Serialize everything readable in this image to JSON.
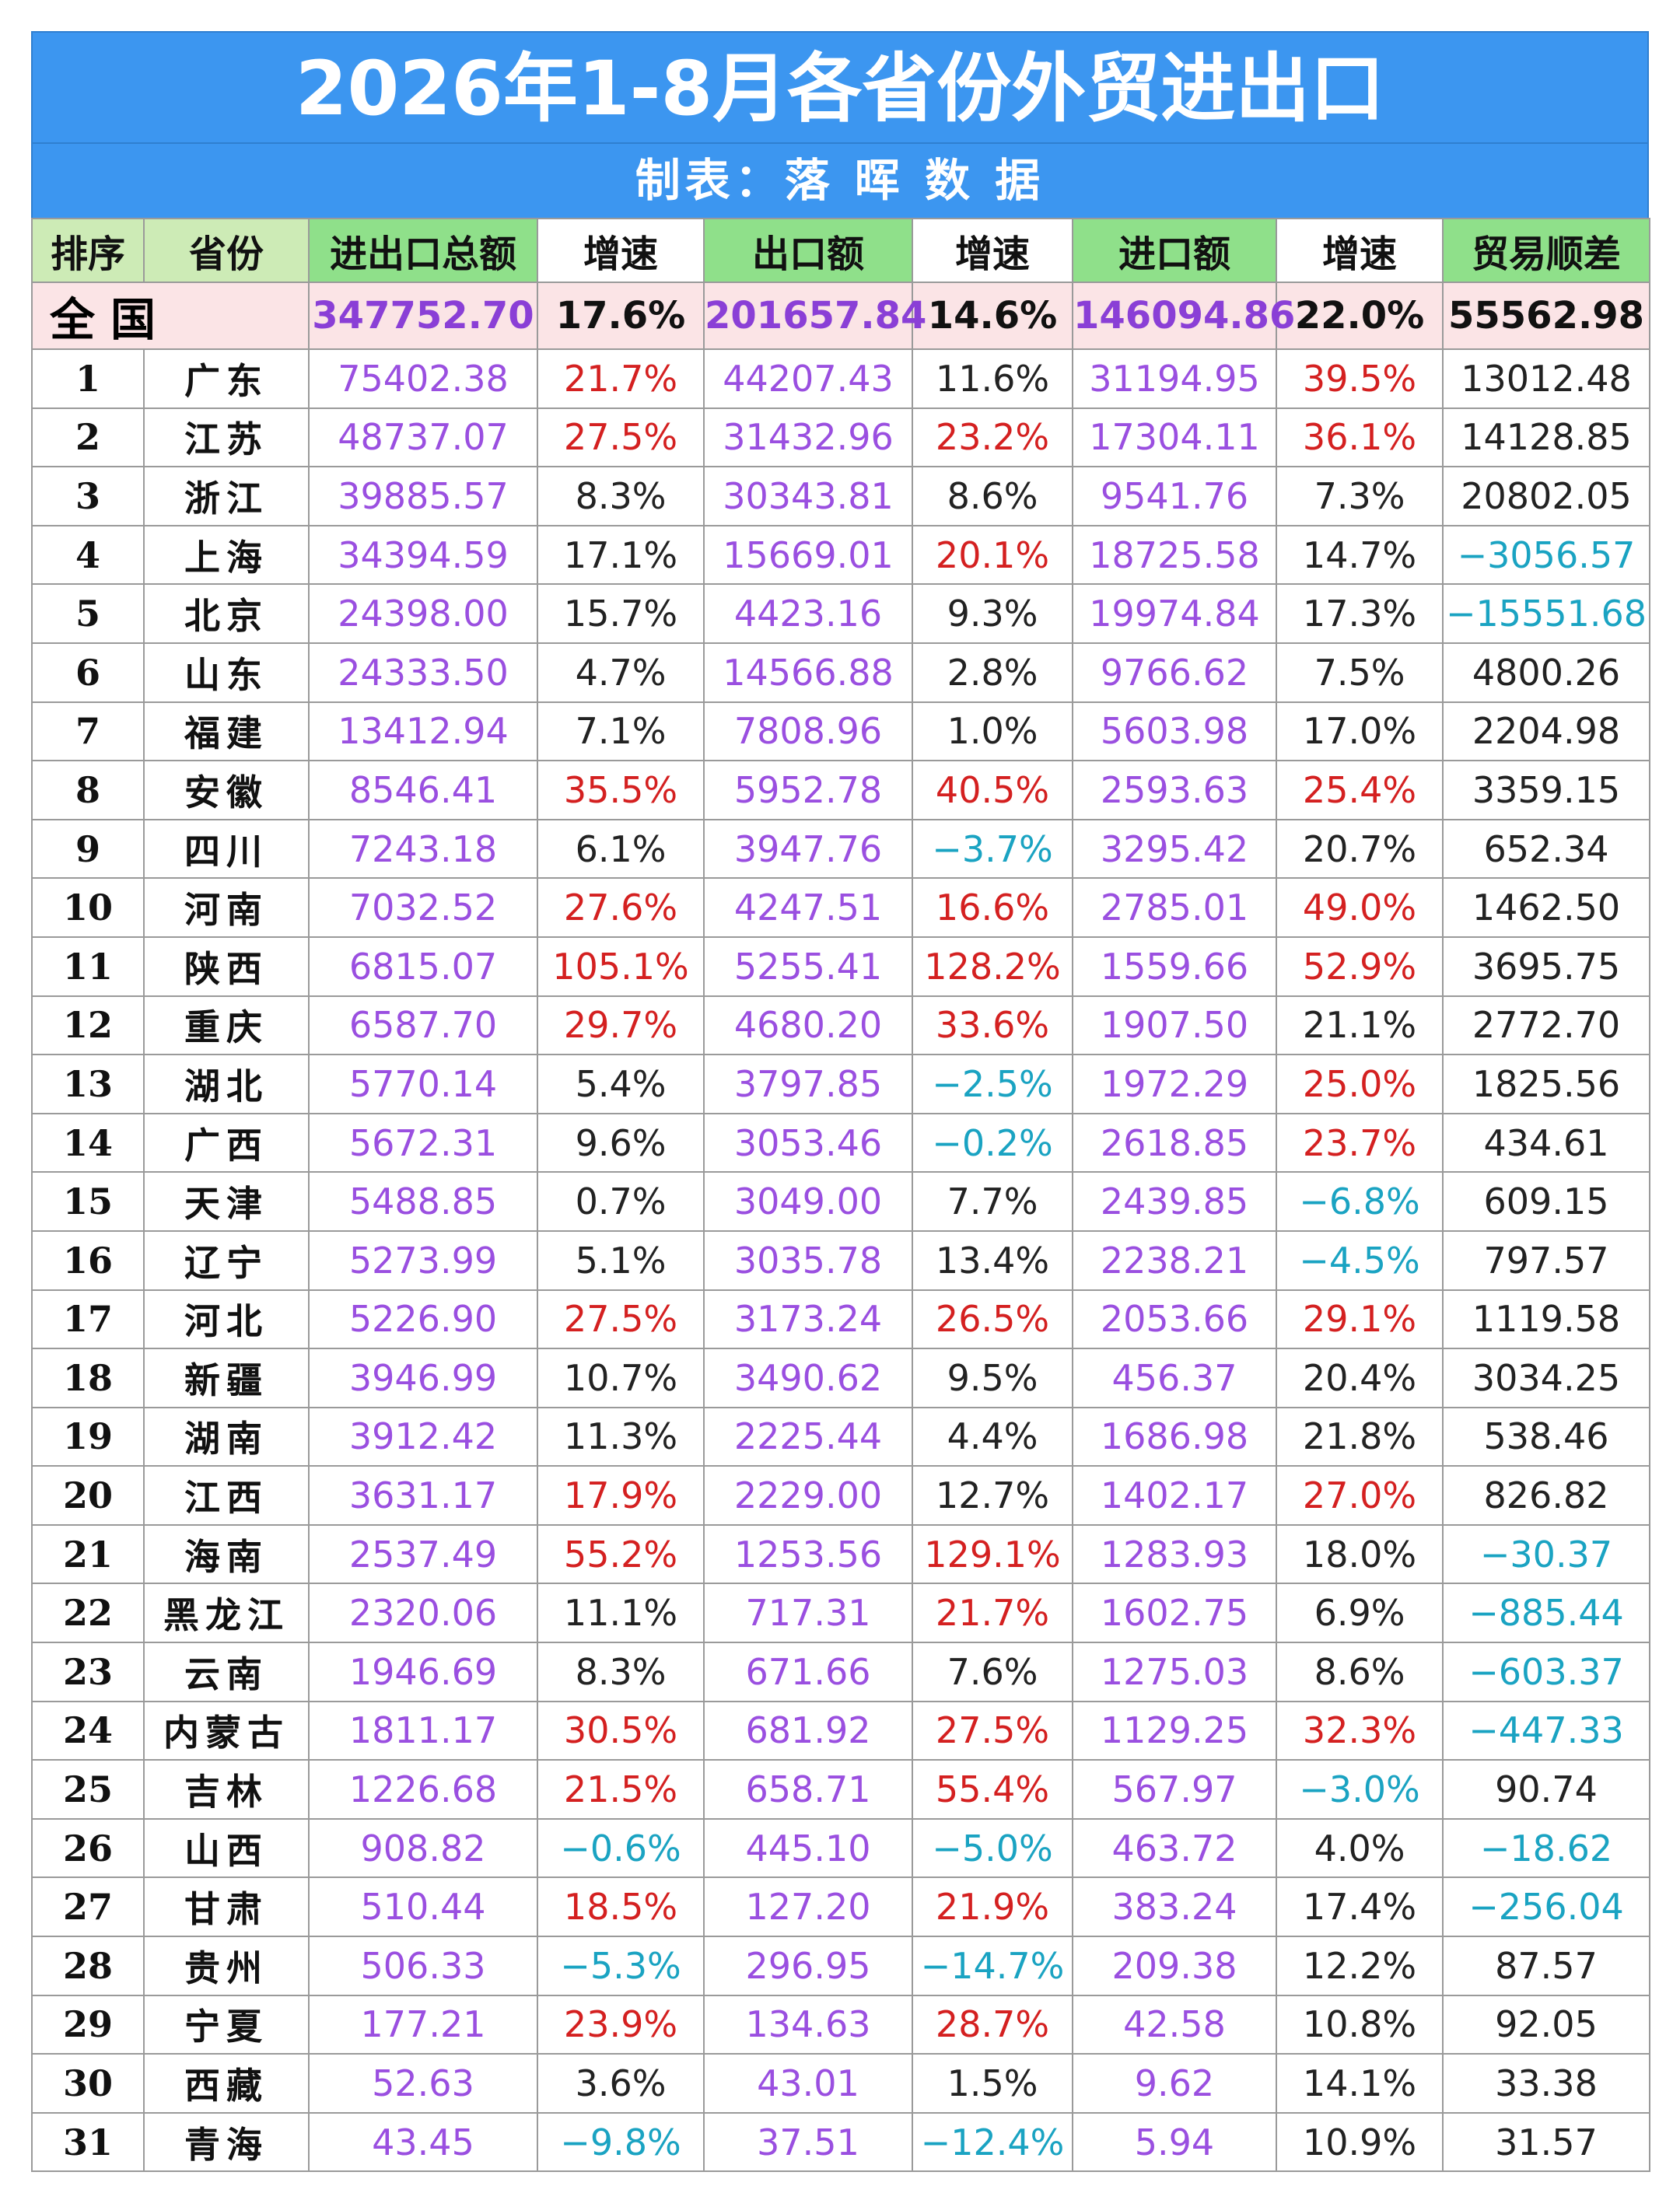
{
  "title": "2026年1-8月各省份外贸进出口",
  "subtitle": "制表：落 晖 数 据",
  "headers": {
    "rank": "排序",
    "province": "省份",
    "total": "进出口总额",
    "total_growth": "增速",
    "export": "出口额",
    "export_growth": "增速",
    "import": "进口额",
    "import_growth": "增速",
    "balance": "贸易顺差"
  },
  "national": {
    "name": "全国",
    "total": "347752.70",
    "total_growth": "17.6%",
    "export": "201657.84",
    "export_growth": "14.6%",
    "import": "146094.86",
    "import_growth": "22.0%",
    "balance": "55562.98"
  },
  "colors": {
    "header_bar": "#3c96f0",
    "value_purple": "#9a4fe0",
    "growth_high_red": "#d42020",
    "negative_cyan": "#1aa3c2",
    "national_row_bg": "#fbe4e6",
    "header_green": "#8fe08a",
    "header_light_green": "#cdebb6"
  },
  "rows": [
    {
      "rank": "1",
      "province": "广东",
      "total": "75402.38",
      "tg": "21.7%",
      "tgc": "red",
      "export": "44207.43",
      "eg": "11.6%",
      "egc": "blk",
      "import": "31194.95",
      "ig": "39.5%",
      "igc": "red",
      "balance": "13012.48",
      "bc": "blk"
    },
    {
      "rank": "2",
      "province": "江苏",
      "total": "48737.07",
      "tg": "27.5%",
      "tgc": "red",
      "export": "31432.96",
      "eg": "23.2%",
      "egc": "red",
      "import": "17304.11",
      "ig": "36.1%",
      "igc": "red",
      "balance": "14128.85",
      "bc": "blk"
    },
    {
      "rank": "3",
      "province": "浙江",
      "total": "39885.57",
      "tg": "8.3%",
      "tgc": "blk",
      "export": "30343.81",
      "eg": "8.6%",
      "egc": "blk",
      "import": "9541.76",
      "ig": "7.3%",
      "igc": "blk",
      "balance": "20802.05",
      "bc": "blk"
    },
    {
      "rank": "4",
      "province": "上海",
      "total": "34394.59",
      "tg": "17.1%",
      "tgc": "blk",
      "export": "15669.01",
      "eg": "20.1%",
      "egc": "red",
      "import": "18725.58",
      "ig": "14.7%",
      "igc": "blk",
      "balance": "−3056.57",
      "bc": "cyan"
    },
    {
      "rank": "5",
      "province": "北京",
      "total": "24398.00",
      "tg": "15.7%",
      "tgc": "blk",
      "export": "4423.16",
      "eg": "9.3%",
      "egc": "blk",
      "import": "19974.84",
      "ig": "17.3%",
      "igc": "blk",
      "balance": "−15551.68",
      "bc": "cyan"
    },
    {
      "rank": "6",
      "province": "山东",
      "total": "24333.50",
      "tg": "4.7%",
      "tgc": "blk",
      "export": "14566.88",
      "eg": "2.8%",
      "egc": "blk",
      "import": "9766.62",
      "ig": "7.5%",
      "igc": "blk",
      "balance": "4800.26",
      "bc": "blk"
    },
    {
      "rank": "7",
      "province": "福建",
      "total": "13412.94",
      "tg": "7.1%",
      "tgc": "blk",
      "export": "7808.96",
      "eg": "1.0%",
      "egc": "blk",
      "import": "5603.98",
      "ig": "17.0%",
      "igc": "blk",
      "balance": "2204.98",
      "bc": "blk"
    },
    {
      "rank": "8",
      "province": "安徽",
      "total": "8546.41",
      "tg": "35.5%",
      "tgc": "red",
      "export": "5952.78",
      "eg": "40.5%",
      "egc": "red",
      "import": "2593.63",
      "ig": "25.4%",
      "igc": "red",
      "balance": "3359.15",
      "bc": "blk"
    },
    {
      "rank": "9",
      "province": "四川",
      "total": "7243.18",
      "tg": "6.1%",
      "tgc": "blk",
      "export": "3947.76",
      "eg": "−3.7%",
      "egc": "cyan",
      "import": "3295.42",
      "ig": "20.7%",
      "igc": "blk",
      "balance": "652.34",
      "bc": "blk"
    },
    {
      "rank": "10",
      "province": "河南",
      "total": "7032.52",
      "tg": "27.6%",
      "tgc": "red",
      "export": "4247.51",
      "eg": "16.6%",
      "egc": "red",
      "import": "2785.01",
      "ig": "49.0%",
      "igc": "red",
      "balance": "1462.50",
      "bc": "blk"
    },
    {
      "rank": "11",
      "province": "陕西",
      "total": "6815.07",
      "tg": "105.1%",
      "tgc": "red",
      "export": "5255.41",
      "eg": "128.2%",
      "egc": "red",
      "import": "1559.66",
      "ig": "52.9%",
      "igc": "red",
      "balance": "3695.75",
      "bc": "blk"
    },
    {
      "rank": "12",
      "province": "重庆",
      "total": "6587.70",
      "tg": "29.7%",
      "tgc": "red",
      "export": "4680.20",
      "eg": "33.6%",
      "egc": "red",
      "import": "1907.50",
      "ig": "21.1%",
      "igc": "blk",
      "balance": "2772.70",
      "bc": "blk"
    },
    {
      "rank": "13",
      "province": "湖北",
      "total": "5770.14",
      "tg": "5.4%",
      "tgc": "blk",
      "export": "3797.85",
      "eg": "−2.5%",
      "egc": "cyan",
      "import": "1972.29",
      "ig": "25.0%",
      "igc": "red",
      "balance": "1825.56",
      "bc": "blk"
    },
    {
      "rank": "14",
      "province": "广西",
      "total": "5672.31",
      "tg": "9.6%",
      "tgc": "blk",
      "export": "3053.46",
      "eg": "−0.2%",
      "egc": "cyan",
      "import": "2618.85",
      "ig": "23.7%",
      "igc": "red",
      "balance": "434.61",
      "bc": "blk"
    },
    {
      "rank": "15",
      "province": "天津",
      "total": "5488.85",
      "tg": "0.7%",
      "tgc": "blk",
      "export": "3049.00",
      "eg": "7.7%",
      "egc": "blk",
      "import": "2439.85",
      "ig": "−6.8%",
      "igc": "cyan",
      "balance": "609.15",
      "bc": "blk"
    },
    {
      "rank": "16",
      "province": "辽宁",
      "total": "5273.99",
      "tg": "5.1%",
      "tgc": "blk",
      "export": "3035.78",
      "eg": "13.4%",
      "egc": "blk",
      "import": "2238.21",
      "ig": "−4.5%",
      "igc": "cyan",
      "balance": "797.57",
      "bc": "blk"
    },
    {
      "rank": "17",
      "province": "河北",
      "total": "5226.90",
      "tg": "27.5%",
      "tgc": "red",
      "export": "3173.24",
      "eg": "26.5%",
      "egc": "red",
      "import": "2053.66",
      "ig": "29.1%",
      "igc": "red",
      "balance": "1119.58",
      "bc": "blk"
    },
    {
      "rank": "18",
      "province": "新疆",
      "total": "3946.99",
      "tg": "10.7%",
      "tgc": "blk",
      "export": "3490.62",
      "eg": "9.5%",
      "egc": "blk",
      "import": "456.37",
      "ig": "20.4%",
      "igc": "blk",
      "balance": "3034.25",
      "bc": "blk"
    },
    {
      "rank": "19",
      "province": "湖南",
      "total": "3912.42",
      "tg": "11.3%",
      "tgc": "blk",
      "export": "2225.44",
      "eg": "4.4%",
      "egc": "blk",
      "import": "1686.98",
      "ig": "21.8%",
      "igc": "blk",
      "balance": "538.46",
      "bc": "blk"
    },
    {
      "rank": "20",
      "province": "江西",
      "total": "3631.17",
      "tg": "17.9%",
      "tgc": "red",
      "export": "2229.00",
      "eg": "12.7%",
      "egc": "blk",
      "import": "1402.17",
      "ig": "27.0%",
      "igc": "red",
      "balance": "826.82",
      "bc": "blk"
    },
    {
      "rank": "21",
      "province": "海南",
      "total": "2537.49",
      "tg": "55.2%",
      "tgc": "red",
      "export": "1253.56",
      "eg": "129.1%",
      "egc": "red",
      "import": "1283.93",
      "ig": "18.0%",
      "igc": "blk",
      "balance": "−30.37",
      "bc": "cyan"
    },
    {
      "rank": "22",
      "province": "黑龙江",
      "total": "2320.06",
      "tg": "11.1%",
      "tgc": "blk",
      "export": "717.31",
      "eg": "21.7%",
      "egc": "red",
      "import": "1602.75",
      "ig": "6.9%",
      "igc": "blk",
      "balance": "−885.44",
      "bc": "cyan"
    },
    {
      "rank": "23",
      "province": "云南",
      "total": "1946.69",
      "tg": "8.3%",
      "tgc": "blk",
      "export": "671.66",
      "eg": "7.6%",
      "egc": "blk",
      "import": "1275.03",
      "ig": "8.6%",
      "igc": "blk",
      "balance": "−603.37",
      "bc": "cyan"
    },
    {
      "rank": "24",
      "province": "内蒙古",
      "total": "1811.17",
      "tg": "30.5%",
      "tgc": "red",
      "export": "681.92",
      "eg": "27.5%",
      "egc": "red",
      "import": "1129.25",
      "ig": "32.3%",
      "igc": "red",
      "balance": "−447.33",
      "bc": "cyan"
    },
    {
      "rank": "25",
      "province": "吉林",
      "total": "1226.68",
      "tg": "21.5%",
      "tgc": "red",
      "export": "658.71",
      "eg": "55.4%",
      "egc": "red",
      "import": "567.97",
      "ig": "−3.0%",
      "igc": "cyan",
      "balance": "90.74",
      "bc": "blk"
    },
    {
      "rank": "26",
      "province": "山西",
      "total": "908.82",
      "tg": "−0.6%",
      "tgc": "cyan",
      "export": "445.10",
      "eg": "−5.0%",
      "egc": "cyan",
      "import": "463.72",
      "ig": "4.0%",
      "igc": "blk",
      "balance": "−18.62",
      "bc": "cyan"
    },
    {
      "rank": "27",
      "province": "甘肃",
      "total": "510.44",
      "tg": "18.5%",
      "tgc": "red",
      "export": "127.20",
      "eg": "21.9%",
      "egc": "red",
      "import": "383.24",
      "ig": "17.4%",
      "igc": "blk",
      "balance": "−256.04",
      "bc": "cyan"
    },
    {
      "rank": "28",
      "province": "贵州",
      "total": "506.33",
      "tg": "−5.3%",
      "tgc": "cyan",
      "export": "296.95",
      "eg": "−14.7%",
      "egc": "cyan",
      "import": "209.38",
      "ig": "12.2%",
      "igc": "blk",
      "balance": "87.57",
      "bc": "blk"
    },
    {
      "rank": "29",
      "province": "宁夏",
      "total": "177.21",
      "tg": "23.9%",
      "tgc": "red",
      "export": "134.63",
      "eg": "28.7%",
      "egc": "red",
      "import": "42.58",
      "ig": "10.8%",
      "igc": "blk",
      "balance": "92.05",
      "bc": "blk"
    },
    {
      "rank": "30",
      "province": "西藏",
      "total": "52.63",
      "tg": "3.6%",
      "tgc": "blk",
      "export": "43.01",
      "eg": "1.5%",
      "egc": "blk",
      "import": "9.62",
      "ig": "14.1%",
      "igc": "blk",
      "balance": "33.38",
      "bc": "blk"
    },
    {
      "rank": "31",
      "province": "青海",
      "total": "43.45",
      "tg": "−9.8%",
      "tgc": "cyan",
      "export": "37.51",
      "eg": "−12.4%",
      "egc": "cyan",
      "import": "5.94",
      "ig": "10.9%",
      "igc": "blk",
      "balance": "31.57",
      "bc": "blk"
    }
  ]
}
